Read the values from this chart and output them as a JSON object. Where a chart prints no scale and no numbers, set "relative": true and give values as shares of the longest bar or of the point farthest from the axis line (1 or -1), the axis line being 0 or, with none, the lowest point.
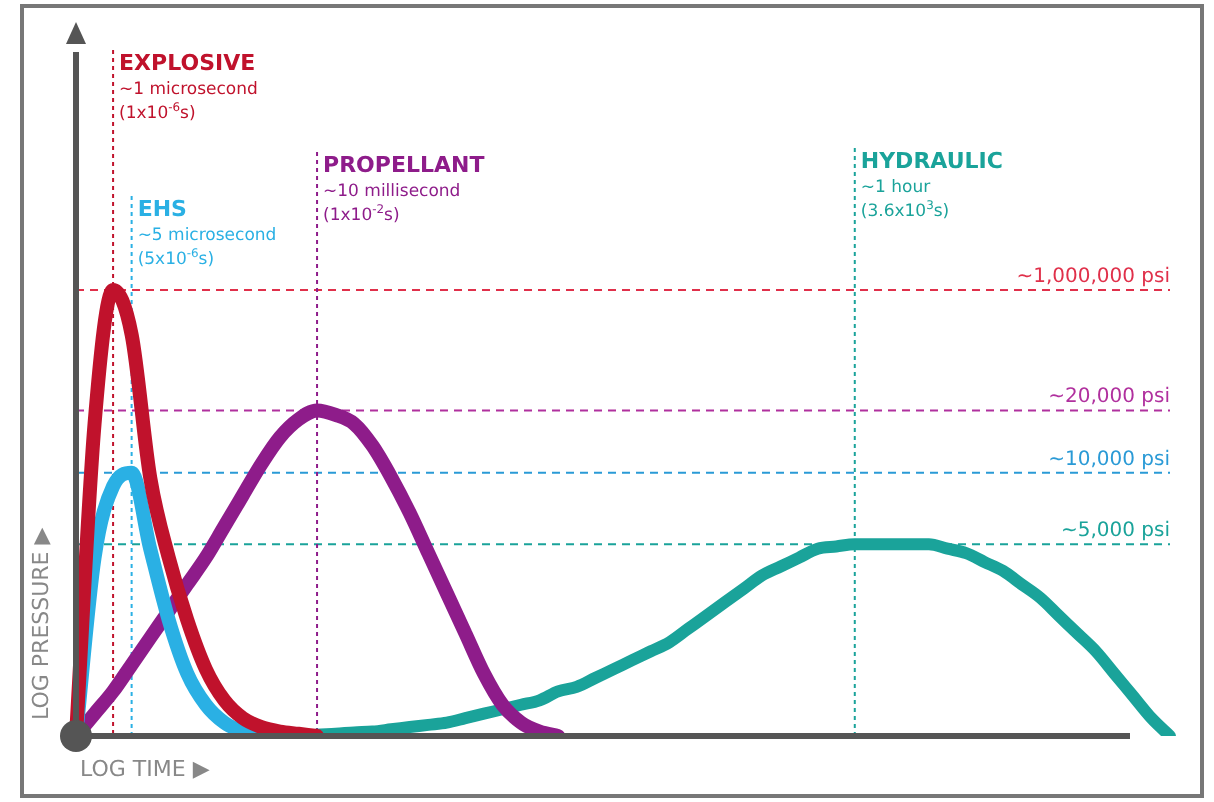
{
  "chart_data": {
    "type": "line",
    "relative": true,
    "tick_labels": false,
    "legend": false,
    "xlabel": "LOG TIME ▶",
    "ylabel": "LOG PRESSURE ▶",
    "categories": [
      null,
      null,
      null,
      null,
      null,
      null,
      null,
      null,
      null,
      null,
      null,
      null,
      null,
      null,
      null,
      null,
      null,
      null,
      null,
      null,
      null,
      null,
      null,
      null,
      null,
      null,
      null,
      null,
      null,
      null,
      null,
      null,
      null,
      null,
      null,
      null,
      null,
      null,
      null,
      null,
      null,
      null,
      null,
      null,
      null,
      null,
      null,
      null,
      null,
      null,
      null,
      null,
      null,
      null,
      null,
      null,
      null,
      null,
      null,
      null
    ],
    "series": [
      {
        "name": "EXPLOSIVE",
        "color": "#c0122c",
        "values": [
          0,
          0.7,
          1.0,
          0.9,
          0.58,
          0.4,
          0.26,
          0.15,
          0.08,
          0.04,
          0.02,
          0.01,
          0.005,
          0,
          null,
          null,
          null,
          null,
          null,
          null,
          null,
          null,
          null,
          null,
          null,
          null,
          null,
          null,
          null,
          null,
          null,
          null,
          null,
          null,
          null,
          null,
          null,
          null,
          null,
          null,
          null,
          null,
          null,
          null,
          null,
          null,
          null,
          null,
          null,
          null,
          null,
          null,
          null,
          null,
          null,
          null,
          null,
          null,
          null,
          null
        ]
      },
      {
        "name": "EHS",
        "color": "#2ab0e4",
        "values": [
          0,
          0.4,
          0.56,
          0.59,
          0.42,
          0.26,
          0.14,
          0.07,
          0.03,
          0.01,
          0,
          null,
          null,
          null,
          null,
          null,
          null,
          null,
          null,
          null,
          null,
          null,
          null,
          null,
          null,
          null,
          null,
          null,
          null,
          null,
          null,
          null,
          null,
          null,
          null,
          null,
          null,
          null,
          null,
          null,
          null,
          null,
          null,
          null,
          null,
          null,
          null,
          null,
          null,
          null,
          null,
          null,
          null,
          null,
          null,
          null,
          null,
          null,
          null,
          null
        ]
      },
      {
        "name": "PROPELLANT",
        "color": "#8e1c8a",
        "values": [
          0,
          0.05,
          0.1,
          0.16,
          0.22,
          0.28,
          0.34,
          0.4,
          0.47,
          0.54,
          0.61,
          0.67,
          0.71,
          0.73,
          0.72,
          0.7,
          0.65,
          0.58,
          0.5,
          0.41,
          0.32,
          0.23,
          0.14,
          0.07,
          0.03,
          0.01,
          0,
          null,
          null,
          null,
          null,
          null,
          null,
          null,
          null,
          null,
          null,
          null,
          null,
          null,
          null,
          null,
          null,
          null,
          null,
          null,
          null,
          null,
          null,
          null,
          null,
          null,
          null,
          null,
          null,
          null,
          null,
          null,
          null,
          null
        ]
      },
      {
        "name": "HYDRAULIC",
        "color": "#1aa39a",
        "values": [
          null,
          null,
          null,
          null,
          null,
          null,
          null,
          null,
          null,
          null,
          null,
          null,
          0,
          0.003,
          0.005,
          0.008,
          0.01,
          0.015,
          0.02,
          0.025,
          0.03,
          0.04,
          0.05,
          0.06,
          0.07,
          0.08,
          0.1,
          0.11,
          0.13,
          0.15,
          0.17,
          0.19,
          0.21,
          0.24,
          0.27,
          0.3,
          0.33,
          0.36,
          0.38,
          0.4,
          0.42,
          0.425,
          0.43,
          0.43,
          0.43,
          0.43,
          0.43,
          0.42,
          0.41,
          0.39,
          0.37,
          0.34,
          0.31,
          0.27,
          0.23,
          0.19,
          0.14,
          0.09,
          0.04,
          0
        ]
      }
    ],
    "ref_lines": [
      {
        "axis": "y",
        "value": 1.0,
        "label": "~1,000,000 psi",
        "color": "#e0304a",
        "line_style": "dashed"
      },
      {
        "axis": "y",
        "value": 0.73,
        "label": "~20,000 psi",
        "color": "#b0309e",
        "line_style": "dashed"
      },
      {
        "axis": "y",
        "value": 0.59,
        "label": "~10,000 psi",
        "color": "#2a9ad6",
        "line_style": "dashed"
      },
      {
        "axis": "y",
        "value": 0.43,
        "label": "~5,000 psi",
        "color": "#1aa39a",
        "line_style": "dashed"
      }
    ],
    "annotations": [
      "~1 microsecond (1x10$^{-6}$s)",
      "~5 microsecond (5x10$^{-6}$s)",
      "~10 millisecond (1x10$^{-2}$s)",
      "~1 hour (3.6x10$^{3}$s)"
    ]
  }
}
